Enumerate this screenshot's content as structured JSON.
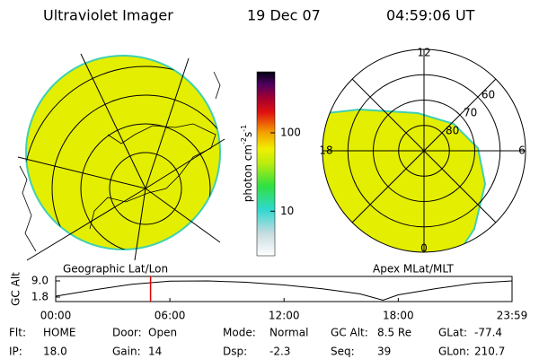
{
  "header": {
    "title": "Ultraviolet Imager",
    "date": "19 Dec 07",
    "time": "04:59:06 UT"
  },
  "left_panel": {
    "caption": "Geographic Lat/Lon"
  },
  "right_panel": {
    "caption": "Apex MLat/MLT",
    "mlt_labels": [
      12,
      18,
      6,
      0
    ],
    "mlat_labels": [
      60,
      70,
      80
    ]
  },
  "colorbar": {
    "unit": {
      "base": "photon cm",
      "exp1": "-2",
      "mid": "s",
      "exp2": "-1"
    },
    "lim": [
      2.7,
      600
    ],
    "ticks": [
      10,
      100
    ],
    "log": true
  },
  "chart_data": {
    "type": "line",
    "ylabel": "GC Alt",
    "x": [
      0,
      2,
      4,
      6,
      8,
      10,
      12,
      14,
      16,
      17.2,
      18,
      20,
      22,
      23.98
    ],
    "values": [
      2.2,
      5,
      7.5,
      8.9,
      9.0,
      8.4,
      7.2,
      5.5,
      3.2,
      0.4,
      2.8,
      5.6,
      8,
      9.0
    ],
    "xlim": [
      0,
      23.98
    ],
    "xticks": [
      {
        "value": 0,
        "label": "00:00"
      },
      {
        "value": 6,
        "label": "06:00"
      },
      {
        "value": 12,
        "label": "12:00"
      },
      {
        "value": 18,
        "label": "18:00"
      },
      {
        "value": 23.98,
        "label": "23:59"
      }
    ],
    "ylim": [
      -0.2,
      11.0
    ],
    "yticks": [
      {
        "value": 9,
        "label": "9.0"
      },
      1.8
    ],
    "color": "#000000",
    "marker_x": 4.985,
    "marker_color": "#e00000"
  },
  "info": {
    "rows": [
      [
        {
          "label": "Flt:",
          "value": "HOME"
        },
        {
          "label": "Door:",
          "value": "Open"
        },
        {
          "label": "Mode:",
          "value": "Normal"
        },
        {
          "label": "GC Alt:",
          "value": "8.5 Re"
        },
        {
          "label": "GLat:",
          "value": "-77.4"
        }
      ],
      [
        {
          "label": "IP:",
          "value": "18.0"
        },
        {
          "label": "Gain:",
          "value": "14"
        },
        {
          "label": "Dsp:",
          "value": "-2.3"
        },
        {
          "label": "Seq:",
          "value": "39"
        },
        {
          "label": "GLon:",
          "value": "210.7"
        }
      ]
    ]
  }
}
